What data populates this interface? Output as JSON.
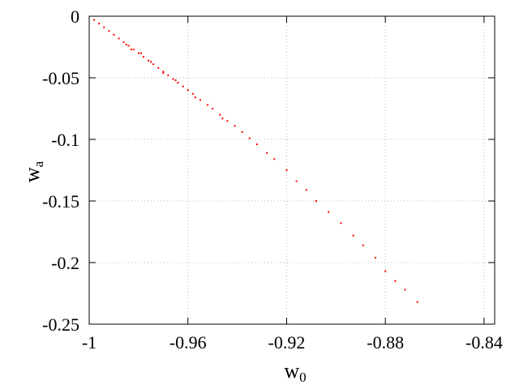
{
  "chart_data": {
    "type": "scatter",
    "x_label": {
      "base": "w",
      "sub": "0"
    },
    "y_label": {
      "base": "w",
      "sub": "a"
    },
    "color": "#ff0000",
    "grid": true,
    "xlim": [
      -1,
      -0.8357
    ],
    "ylim": [
      -0.25,
      0
    ],
    "xticks": [
      -1,
      -0.96,
      -0.92,
      -0.88,
      -0.84
    ],
    "yticks": [
      0,
      -0.05,
      -0.1,
      -0.15,
      -0.2,
      -0.25
    ],
    "x": [
      -0.998,
      -0.996,
      -0.994,
      -0.992,
      -0.99,
      -0.988,
      -0.986,
      -0.984,
      -0.982,
      -0.98,
      -0.978,
      -0.976,
      -0.974,
      -0.972,
      -0.97,
      -0.968,
      -0.966,
      -0.964,
      -0.962,
      -0.96,
      -0.958,
      -0.955,
      -0.952,
      -0.95,
      -0.947,
      -0.944,
      -0.941,
      -0.938,
      -0.935,
      -0.932,
      -0.928,
      -0.925,
      -0.92,
      -0.916,
      -0.912,
      -0.908,
      -0.903,
      -0.898,
      -0.893,
      -0.889,
      -0.884,
      -0.88,
      -0.876,
      -0.872,
      -0.867,
      -0.985,
      -0.975,
      -0.97,
      -0.965,
      -0.979,
      -0.983,
      -0.957,
      -0.946
    ],
    "y": [
      -0.003,
      -0.006,
      -0.009,
      -0.012,
      -0.015,
      -0.018,
      -0.021,
      -0.024,
      -0.027,
      -0.03,
      -0.033,
      -0.036,
      -0.039,
      -0.042,
      -0.045,
      -0.048,
      -0.051,
      -0.054,
      -0.057,
      -0.06,
      -0.063,
      -0.068,
      -0.072,
      -0.075,
      -0.08,
      -0.085,
      -0.089,
      -0.094,
      -0.099,
      -0.104,
      -0.111,
      -0.116,
      -0.125,
      -0.134,
      -0.141,
      -0.15,
      -0.159,
      -0.168,
      -0.178,
      -0.186,
      -0.196,
      -0.207,
      -0.215,
      -0.222,
      -0.232,
      -0.023,
      -0.037,
      -0.046,
      -0.052,
      -0.03,
      -0.027,
      -0.066,
      -0.083
    ]
  }
}
